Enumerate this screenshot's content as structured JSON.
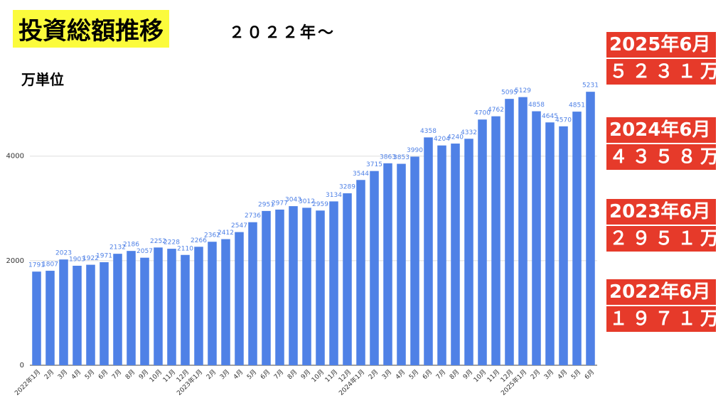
{
  "chart_data": {
    "type": "bar",
    "title": "投資総額推移",
    "subtitle": "２０２２年～",
    "unit_label": "万単位",
    "categories": [
      "2022年1月",
      "2月",
      "3月",
      "4月",
      "5月",
      "6月",
      "7月",
      "8月",
      "9月",
      "10月",
      "11月",
      "12月",
      "2023年1月",
      "2月",
      "3月",
      "4月",
      "5月",
      "6月",
      "7月",
      "8月",
      "9月",
      "10月",
      "11月",
      "12月",
      "2024年1月",
      "2月",
      "3月",
      "4月",
      "5月",
      "6月",
      "7月",
      "8月",
      "9月",
      "10月",
      "11月",
      "12月",
      "2025年1月",
      "2月",
      "3月",
      "4月",
      "5月",
      "6月"
    ],
    "values": [
      1791,
      1807,
      2023,
      1903,
      1922,
      1971,
      2132,
      2186,
      2057,
      2252,
      2228,
      2110,
      2266,
      2362,
      2412,
      2547,
      2736,
      2951,
      2977,
      3043,
      3012,
      2959,
      3134,
      3289,
      3544,
      3715,
      3863,
      3853,
      3990,
      4358,
      4204,
      4240,
      4332,
      4700,
      4762,
      5095,
      5129,
      4858,
      4645,
      4570,
      4851,
      5231
    ],
    "color": "#4f81e6",
    "ylim": [
      0,
      5600
    ],
    "yticks": [
      0,
      2000,
      4000
    ],
    "grid": true,
    "highlights": [
      {
        "date": "2025年6月",
        "amount": "５２３１万"
      },
      {
        "date": "2024年6月",
        "amount": "４３５８万"
      },
      {
        "date": "2023年6月",
        "amount": "２９５１万"
      },
      {
        "date": "2022年6月",
        "amount": "１９７１万"
      }
    ]
  }
}
